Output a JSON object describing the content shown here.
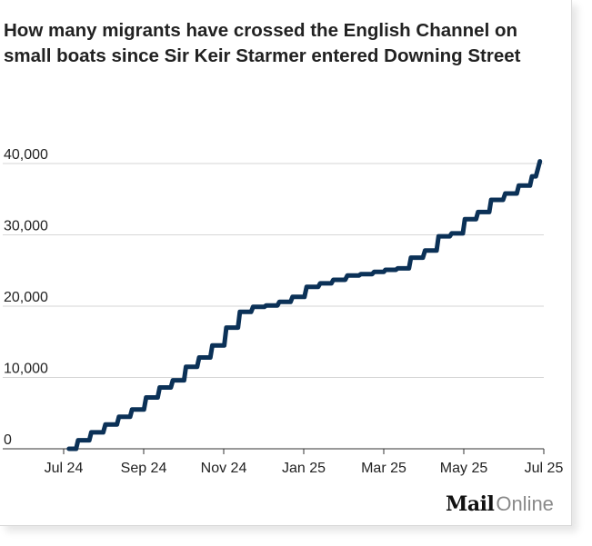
{
  "chart_data": {
    "type": "line",
    "title": "How many migrants have crossed the English Channel on small boats since Sir Keir Starmer entered Downing Street",
    "xlabel": "",
    "ylabel": "",
    "x_ticks": [
      "Jul 24",
      "Sep 24",
      "Nov 24",
      "Jan 25",
      "Mar 25",
      "May 25",
      "Jul 25"
    ],
    "y_ticks": [
      "0",
      "10,000",
      "20,000",
      "30,000",
      "40,000"
    ],
    "y_tick_values": [
      0,
      10000,
      20000,
      30000,
      40000
    ],
    "ylim": [
      0,
      40000
    ],
    "xlim": [
      "2024-07-01",
      "2025-07-01"
    ],
    "grid": true,
    "line_color": "#0b3157",
    "series": [
      {
        "name": "",
        "x": [
          "2024-07-05",
          "2024-07-15",
          "2024-07-25",
          "2024-08-05",
          "2024-08-15",
          "2024-08-25",
          "2024-09-05",
          "2024-09-15",
          "2024-09-25",
          "2024-10-05",
          "2024-10-15",
          "2024-10-25",
          "2024-11-05",
          "2024-11-15",
          "2024-11-25",
          "2024-12-05",
          "2024-12-15",
          "2024-12-25",
          "2025-01-05",
          "2025-01-15",
          "2025-01-25",
          "2025-02-05",
          "2025-02-15",
          "2025-02-25",
          "2025-03-05",
          "2025-03-15",
          "2025-03-25",
          "2025-04-05",
          "2025-04-15",
          "2025-04-25",
          "2025-05-05",
          "2025-05-15",
          "2025-05-25",
          "2025-06-05",
          "2025-06-15",
          "2025-06-25"
        ],
        "values": [
          0,
          1200,
          2300,
          3400,
          4500,
          5500,
          7200,
          8600,
          9600,
          11500,
          12800,
          14500,
          17000,
          19200,
          19900,
          20100,
          20600,
          21300,
          22700,
          23200,
          23700,
          24300,
          24500,
          24800,
          25100,
          25300,
          26800,
          27800,
          29800,
          30200,
          32200,
          33200,
          34900,
          35800,
          36900,
          38200
        ]
      }
    ],
    "end_point": {
      "x": "2025-06-28",
      "y": 40300
    }
  },
  "branding": {
    "logo_mail": "Mail",
    "logo_online": "Online"
  }
}
